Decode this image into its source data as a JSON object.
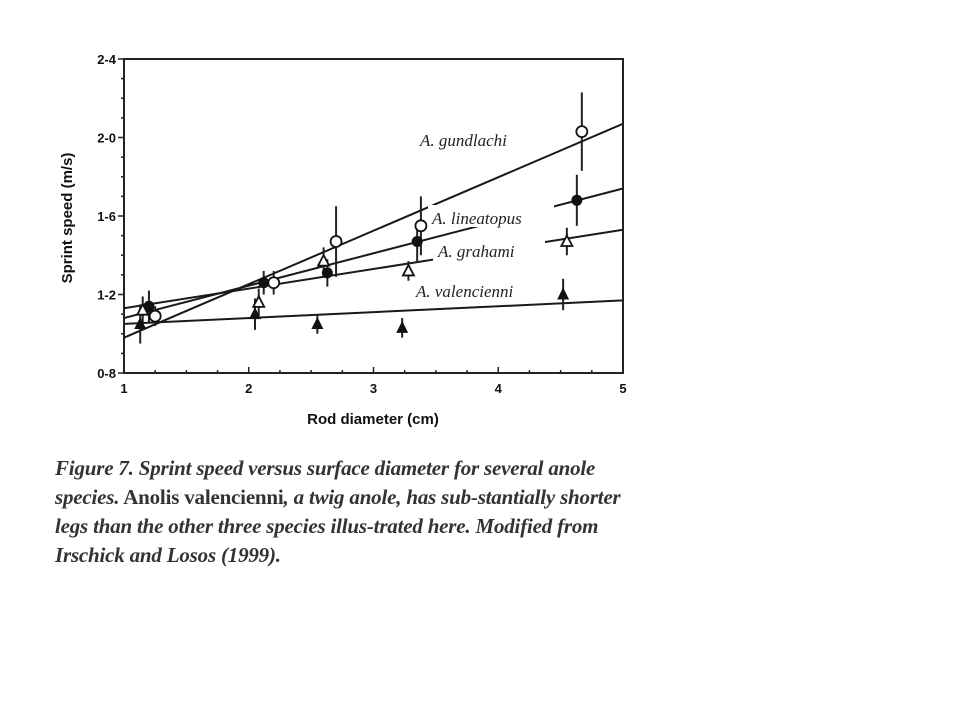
{
  "chart_data": {
    "type": "scatter",
    "xlabel": "Rod diameter (cm)",
    "ylabel": "Sprint speed (m/s)",
    "xlim": [
      1,
      5
    ],
    "ylim": [
      0.8,
      2.4
    ],
    "x_ticks": [
      1,
      2,
      3,
      4,
      5
    ],
    "x_tick_labels": [
      "1",
      "2",
      "3",
      "4",
      "5"
    ],
    "y_ticks": [
      0.8,
      1.2,
      1.6,
      2.0,
      2.4
    ],
    "y_tick_labels": [
      "0-8",
      "1-2",
      "1-6",
      "2-0",
      "2-4"
    ],
    "grid": false,
    "series": [
      {
        "name": "A. gundlachi",
        "marker": "open-circle",
        "points": [
          {
            "x": 1.25,
            "y": 1.09,
            "err": 0.05
          },
          {
            "x": 2.2,
            "y": 1.26,
            "err": 0.06
          },
          {
            "x": 2.7,
            "y": 1.47,
            "err": 0.18
          },
          {
            "x": 3.38,
            "y": 1.55,
            "err": 0.15
          },
          {
            "x": 4.67,
            "y": 2.03,
            "err": 0.2
          }
        ],
        "fit": {
          "x": [
            1.0,
            5.0
          ],
          "y": [
            0.98,
            2.07
          ]
        }
      },
      {
        "name": "A. lineatopus",
        "marker": "filled-circle",
        "points": [
          {
            "x": 1.2,
            "y": 1.14,
            "err": 0.08
          },
          {
            "x": 2.12,
            "y": 1.26,
            "err": 0.06
          },
          {
            "x": 2.63,
            "y": 1.31,
            "err": 0.07
          },
          {
            "x": 3.35,
            "y": 1.47,
            "err": 0.1
          },
          {
            "x": 4.63,
            "y": 1.68,
            "err": 0.13
          }
        ],
        "fit": {
          "x": [
            1.0,
            5.0
          ],
          "y": [
            1.08,
            1.74
          ]
        }
      },
      {
        "name": "A. grahami",
        "marker": "open-triangle",
        "points": [
          {
            "x": 1.15,
            "y": 1.12,
            "err": 0.07
          },
          {
            "x": 2.08,
            "y": 1.16,
            "err": 0.07
          },
          {
            "x": 2.6,
            "y": 1.37,
            "err": 0.07
          },
          {
            "x": 3.28,
            "y": 1.32,
            "err": 0.05
          },
          {
            "x": 4.55,
            "y": 1.47,
            "err": 0.07
          }
        ],
        "fit": {
          "x": [
            1.0,
            5.0
          ],
          "y": [
            1.13,
            1.53
          ]
        }
      },
      {
        "name": "A. valencienni",
        "marker": "filled-triangle",
        "points": [
          {
            "x": 1.13,
            "y": 1.05,
            "err": 0.1
          },
          {
            "x": 2.05,
            "y": 1.1,
            "err": 0.08
          },
          {
            "x": 2.55,
            "y": 1.05,
            "err": 0.05
          },
          {
            "x": 3.23,
            "y": 1.03,
            "err": 0.05
          },
          {
            "x": 4.52,
            "y": 1.2,
            "err": 0.08
          }
        ],
        "fit": {
          "x": [
            1.0,
            5.0
          ],
          "y": [
            1.05,
            1.17
          ]
        }
      }
    ]
  },
  "caption": {
    "part1": "Figure 7. Sprint speed versus surface diameter for several anole species.",
    "part2": " Anolis valencienni",
    "part3": ", a twig anole, has sub-stantially shorter legs than the other three species illus-trated here. Modified from Irschick and Losos (1999)."
  }
}
